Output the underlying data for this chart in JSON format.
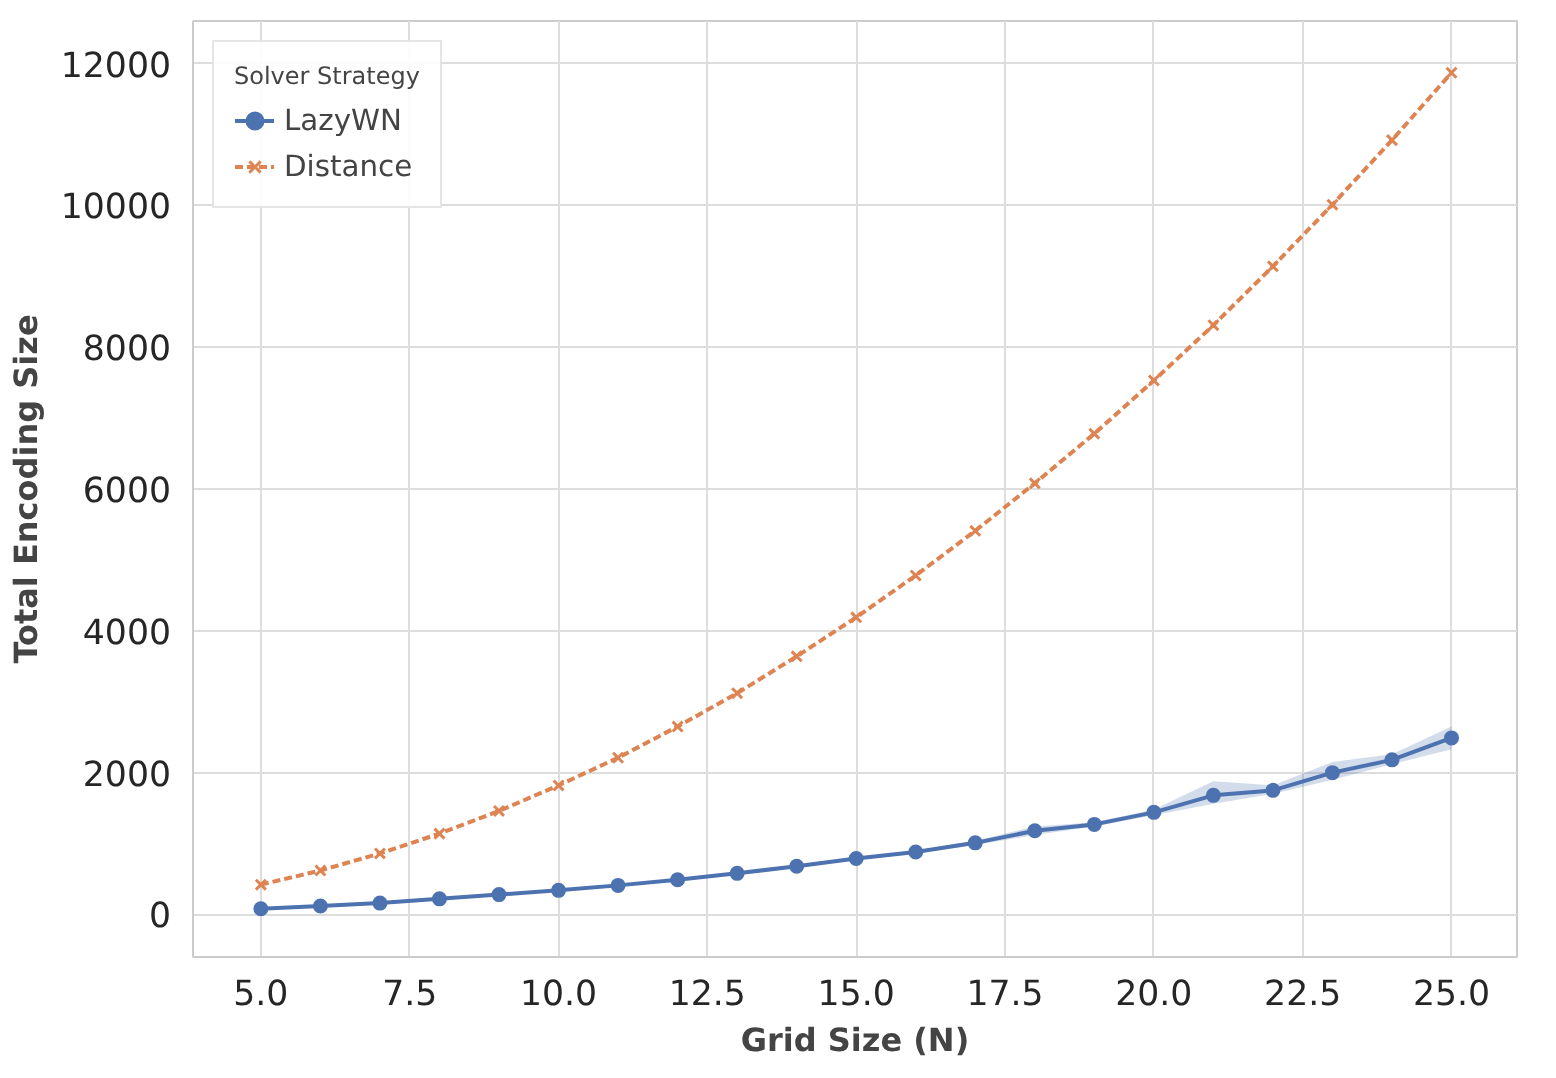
{
  "chart_data": {
    "type": "line",
    "xlabel": "Grid Size (N)",
    "ylabel": "Total Encoding Size",
    "legend_title": "Solver Strategy",
    "x": [
      5,
      6,
      7,
      8,
      9,
      10,
      11,
      12,
      13,
      14,
      15,
      16,
      17,
      18,
      19,
      20,
      21,
      22,
      23,
      24,
      25
    ],
    "series": [
      {
        "name": "LazyWN",
        "color": "#4c72b0",
        "marker": "circle",
        "line_style": "solid",
        "values": [
          80,
          120,
          160,
          220,
          280,
          340,
          410,
          490,
          580,
          680,
          790,
          880,
          1010,
          1180,
          1270,
          1440,
          1680,
          1750,
          2000,
          2180,
          2490
        ],
        "lower": [
          70,
          110,
          150,
          205,
          265,
          325,
          395,
          475,
          565,
          665,
          770,
          860,
          980,
          1120,
          1240,
          1400,
          1560,
          1700,
          1900,
          2120,
          2330
        ],
        "upper": [
          90,
          130,
          170,
          235,
          295,
          355,
          425,
          505,
          595,
          695,
          810,
          900,
          1040,
          1240,
          1300,
          1480,
          1880,
          1820,
          2150,
          2260,
          2650
        ]
      },
      {
        "name": "Distance",
        "color": "#dd8452",
        "marker": "cross",
        "line_style": "dashed",
        "values": [
          420,
          620,
          860,
          1140,
          1460,
          1820,
          2210,
          2650,
          3120,
          3640,
          4190,
          4780,
          5410,
          6080,
          6780,
          7530,
          8310,
          9140,
          10010,
          10920,
          11870
        ]
      }
    ],
    "xlim": [
      3.86,
      26.1
    ],
    "ylim": [
      -600,
      12600
    ],
    "xticks": [
      {
        "value": 5,
        "label": "5.0"
      },
      {
        "value": 7.5,
        "label": "7.5"
      },
      {
        "value": 10,
        "label": "10.0"
      },
      {
        "value": 12.5,
        "label": "12.5"
      },
      {
        "value": 15,
        "label": "15.0"
      },
      {
        "value": 17.5,
        "label": "17.5"
      },
      {
        "value": 20,
        "label": "20.0"
      },
      {
        "value": 22.5,
        "label": "22.5"
      },
      {
        "value": 25,
        "label": "25.0"
      }
    ],
    "yticks": [
      0,
      2000,
      4000,
      6000,
      8000,
      10000,
      12000
    ],
    "grid": true,
    "legend": "top left"
  }
}
